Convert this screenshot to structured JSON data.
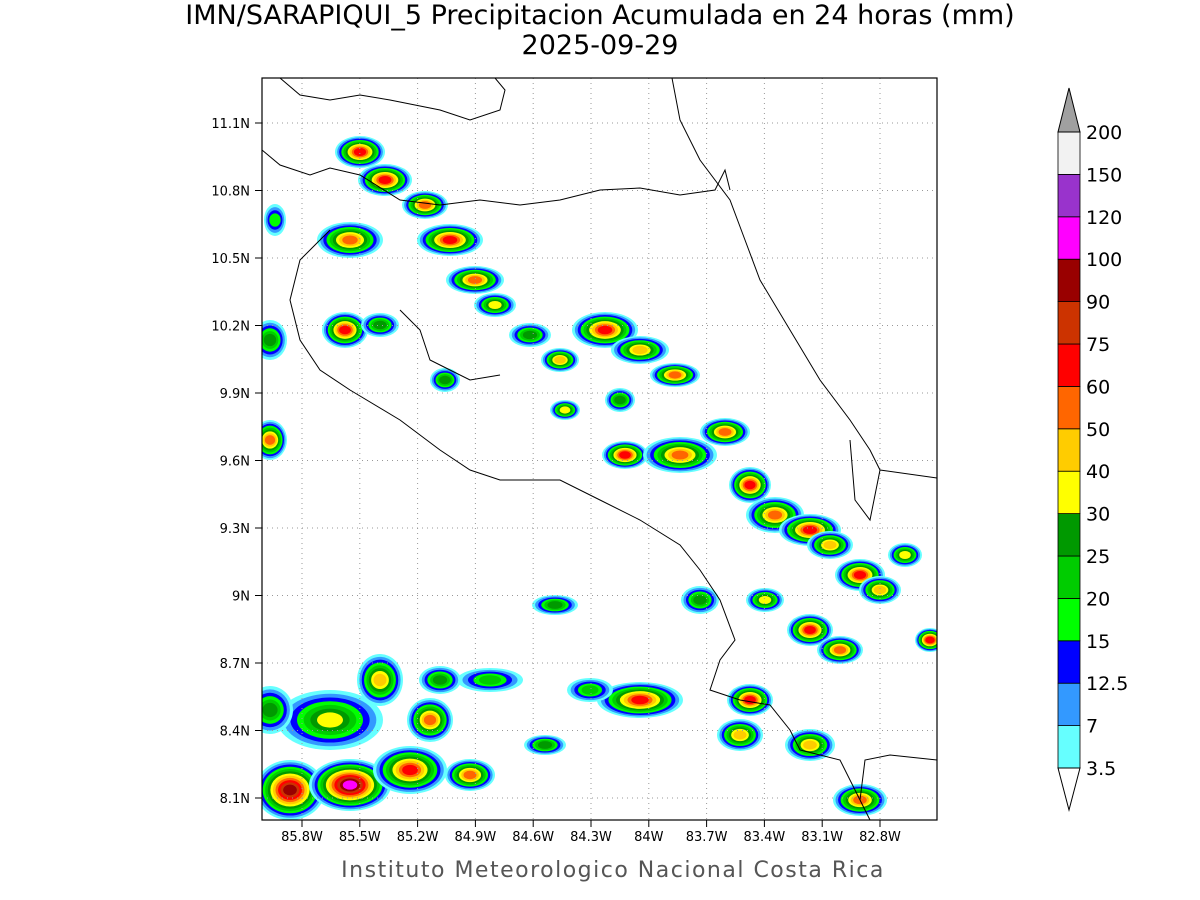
{
  "header": {
    "title": "IMN/SARAPIQUI_5 Precipitacion Acumulada en 24 horas (mm)",
    "subtitle": "2025-09-29"
  },
  "map": {
    "lat_labels": [
      "11.1N",
      "10.8N",
      "10.5N",
      "10.2N",
      "9.9N",
      "9.6N",
      "9.3N",
      "9N",
      "8.7N",
      "8.4N",
      "8.1N"
    ],
    "lon_labels": [
      "85.8W",
      "85.5W",
      "85.2W",
      "84.9W",
      "84.6W",
      "84.3W",
      "84W",
      "83.7W",
      "83.4W",
      "83.1W",
      "82.8W"
    ]
  },
  "colorbar": {
    "levels": [
      3.5,
      7,
      12.5,
      15,
      20,
      25,
      30,
      40,
      50,
      60,
      75,
      90,
      100,
      120,
      150,
      200
    ],
    "colors": [
      "#66ffff",
      "#3399ff",
      "#0000ff",
      "#00ff00",
      "#00cc00",
      "#009900",
      "#ffff00",
      "#ffcc00",
      "#ff6600",
      "#ff0000",
      "#cc3300",
      "#990000",
      "#ff00ff",
      "#9933cc",
      "#f2f2f2"
    ],
    "over_color": "#a0a0a0",
    "under_color": "#ffffff"
  },
  "footer": "Instituto Meteorologico Nacional Costa Rica"
}
